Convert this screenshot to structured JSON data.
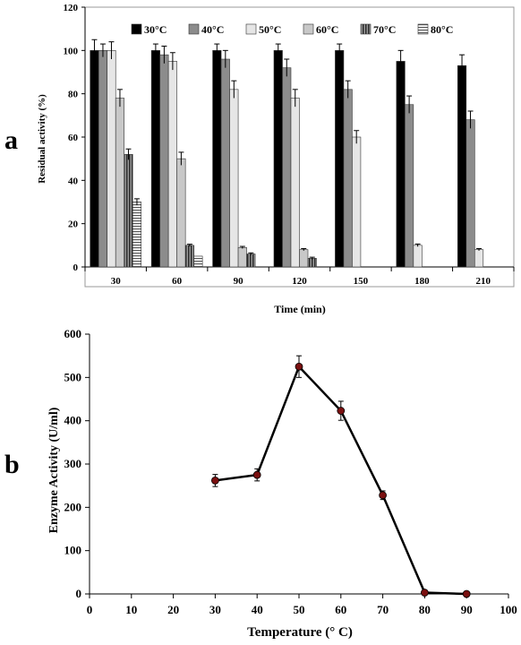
{
  "chart_data": [
    {
      "panel_label": "a",
      "type": "bar",
      "xlabel": "Time (min)",
      "ylabel": "Residual activity (%)",
      "ylim": [
        0,
        120
      ],
      "yticks": [
        "0",
        "20",
        "40",
        "60",
        "80",
        "100",
        "120"
      ],
      "categories": [
        "30",
        "60",
        "90",
        "120",
        "150",
        "180",
        "210"
      ],
      "legend_position": "top",
      "series": [
        {
          "name": "30°C",
          "color": "#000000",
          "pattern": "solid",
          "values": [
            100,
            100,
            100,
            100,
            100,
            95,
            93
          ],
          "errors": [
            5,
            3,
            3,
            3,
            3,
            5,
            5
          ]
        },
        {
          "name": "40°C",
          "color": "#8c8c8c",
          "pattern": "solid",
          "values": [
            100,
            98,
            96,
            92,
            82,
            75,
            68
          ],
          "errors": [
            3,
            4,
            4,
            4,
            4,
            4,
            4
          ]
        },
        {
          "name": "50°C",
          "color": "#e6e6e6",
          "pattern": "solid",
          "values": [
            100,
            95,
            82,
            78,
            60,
            10,
            8
          ],
          "errors": [
            4,
            4,
            4,
            4,
            3,
            0.6,
            0.5
          ]
        },
        {
          "name": "60°C",
          "color": "#c8c8c8",
          "pattern": "solid",
          "values": [
            78,
            50,
            9,
            8,
            null,
            null,
            null
          ],
          "errors": [
            4,
            3,
            0.5,
            0.5,
            null,
            null,
            null
          ]
        },
        {
          "name": "70°C",
          "color": "#505050",
          "pattern": "vstripes",
          "values": [
            52,
            10,
            6,
            4,
            null,
            null,
            null
          ],
          "errors": [
            2.5,
            0.5,
            0.5,
            0.5,
            null,
            null,
            null
          ]
        },
        {
          "name": "80°C",
          "color": "#d8d8d8",
          "pattern": "hstripes",
          "values": [
            30,
            5,
            null,
            null,
            null,
            null,
            null
          ],
          "errors": [
            1.5,
            null,
            null,
            null,
            null,
            null,
            null
          ]
        }
      ]
    },
    {
      "panel_label": "b",
      "type": "line",
      "xlabel": "Temperature  (° C)",
      "ylabel": "Enzyme Activity  (U/ml)",
      "xlim": [
        0,
        100
      ],
      "ylim": [
        0,
        600
      ],
      "xticks": [
        "0",
        "10",
        "20",
        "30",
        "40",
        "50",
        "60",
        "70",
        "80",
        "90",
        "100"
      ],
      "yticks": [
        "0",
        "100",
        "200",
        "300",
        "400",
        "500",
        "600"
      ],
      "series": [
        {
          "color": "#000000",
          "marker_color": "#7a1010",
          "x": [
            30,
            40,
            50,
            60,
            70,
            80,
            90
          ],
          "y": [
            262,
            275,
            525,
            423,
            228,
            3,
            0
          ],
          "errors": [
            14,
            14,
            25,
            22,
            10,
            2,
            2
          ]
        }
      ]
    }
  ]
}
